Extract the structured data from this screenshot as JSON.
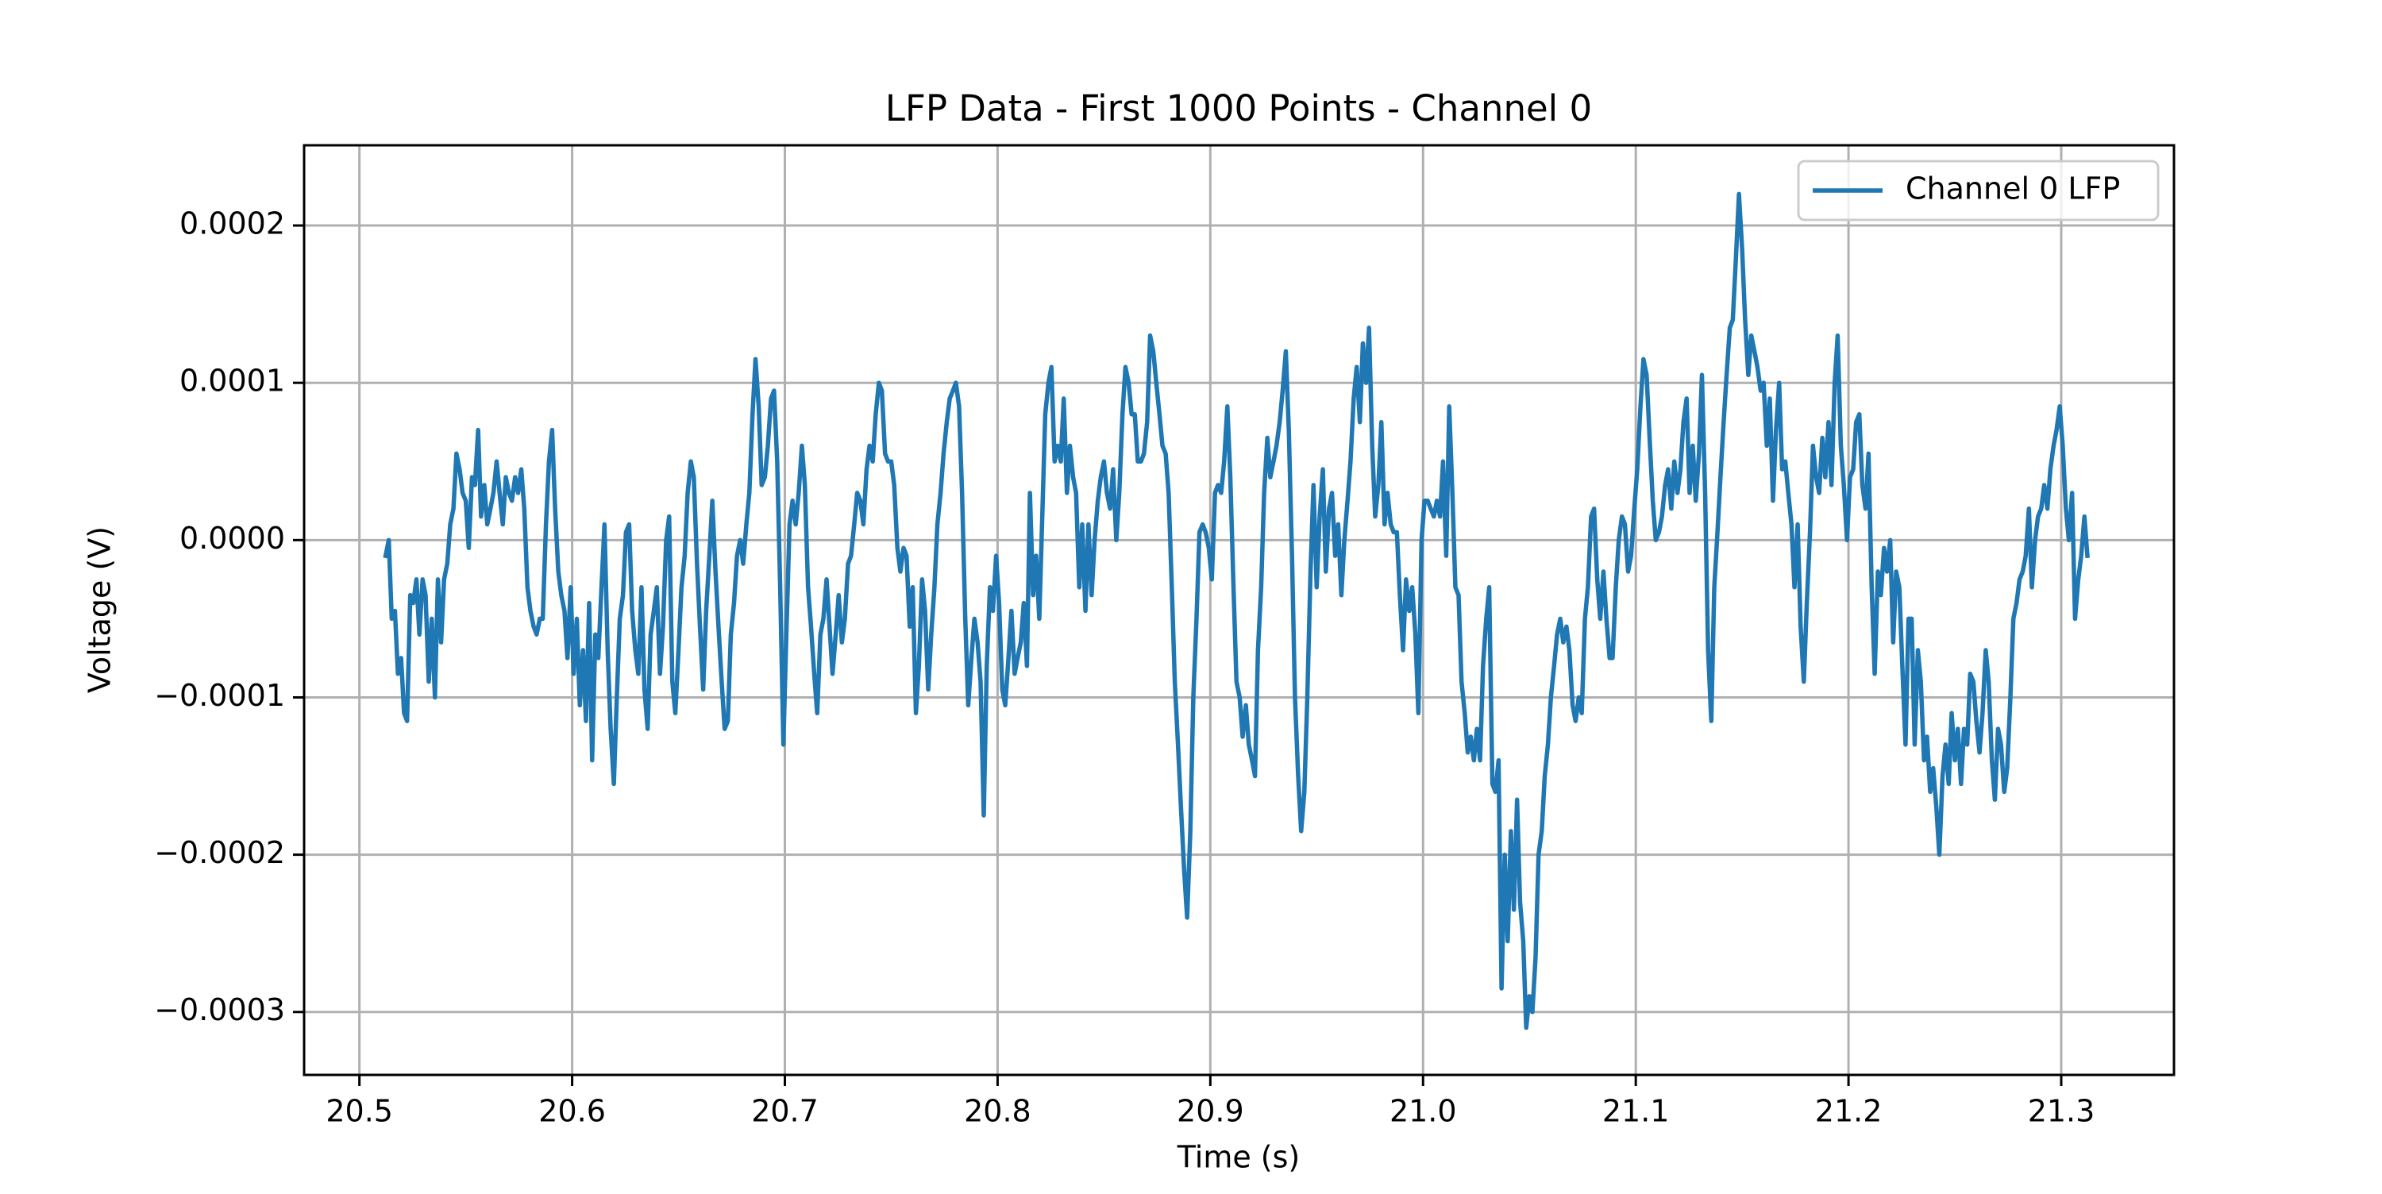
{
  "chart_data": {
    "type": "line",
    "title": "LFP Data - First 1000 Points - Channel 0",
    "x_label": "Time (s)",
    "y_label": "Voltage (V)",
    "grid": true,
    "legend": "upper right",
    "xlim": [
      20.474,
      21.353
    ],
    "ylim": [
      -0.00034,
      0.000251
    ],
    "xticks": [
      20.5,
      20.6,
      20.7,
      20.8,
      20.9,
      {
        "value": 21,
        "label": "21.0"
      },
      21.1,
      21.2,
      21.3
    ],
    "yticks": [
      {
        "value": -0.0003,
        "label": "−0.0003"
      },
      {
        "value": -0.0002,
        "label": "−0.0002"
      },
      {
        "value": -0.0001,
        "label": "−0.0001"
      },
      {
        "value": 0,
        "label": "0.0000"
      },
      0.0001,
      0.0002
    ],
    "x": [
      20.5123,
      20.5138,
      20.5152,
      20.5167,
      20.5181,
      20.5196,
      20.521,
      20.5224,
      20.5239,
      20.5253,
      20.5268,
      20.5282,
      20.5297,
      20.5311,
      20.5326,
      20.534,
      20.5355,
      20.5369,
      20.5384,
      20.5398,
      20.5413,
      20.5427,
      20.5442,
      20.5456,
      20.5471,
      20.5485,
      20.55,
      20.5514,
      20.5529,
      20.5543,
      20.5558,
      20.5572,
      20.5587,
      20.5601,
      20.5616,
      20.563,
      20.5645,
      20.5659,
      20.5674,
      20.5688,
      20.5703,
      20.5717,
      20.5732,
      20.5746,
      20.5761,
      20.5775,
      20.579,
      20.5804,
      20.5819,
      20.5833,
      20.5848,
      20.5862,
      20.5877,
      20.5891,
      20.5906,
      20.592,
      20.5935,
      20.5949,
      20.5964,
      20.5978,
      20.5993,
      20.6007,
      20.6022,
      20.6036,
      20.6051,
      20.6065,
      20.608,
      20.6094,
      20.6109,
      20.6123,
      20.6138,
      20.6152,
      20.6167,
      20.6181,
      20.6196,
      20.621,
      20.6224,
      20.6239,
      20.6253,
      20.6268,
      20.6282,
      20.6297,
      20.6311,
      20.6326,
      20.634,
      20.6355,
      20.6369,
      20.6384,
      20.6398,
      20.6413,
      20.6427,
      20.6442,
      20.6456,
      20.6471,
      20.6485,
      20.65,
      20.6514,
      20.6529,
      20.6543,
      20.6558,
      20.6572,
      20.6587,
      20.6601,
      20.6616,
      20.663,
      20.6645,
      20.6659,
      20.6674,
      20.6688,
      20.6703,
      20.6717,
      20.6732,
      20.6746,
      20.6761,
      20.6775,
      20.679,
      20.6804,
      20.6819,
      20.6833,
      20.6848,
      20.6862,
      20.6877,
      20.6891,
      20.6906,
      20.692,
      20.6935,
      20.6949,
      20.6964,
      20.6978,
      20.6993,
      20.7007,
      20.7022,
      20.7036,
      20.7051,
      20.7065,
      20.708,
      20.7094,
      20.7109,
      20.7123,
      20.7138,
      20.7152,
      20.7167,
      20.7181,
      20.7196,
      20.721,
      20.7224,
      20.7239,
      20.7253,
      20.7268,
      20.7282,
      20.7297,
      20.7311,
      20.7326,
      20.734,
      20.7355,
      20.7369,
      20.7384,
      20.7398,
      20.7413,
      20.7427,
      20.7442,
      20.7456,
      20.7471,
      20.7485,
      20.75,
      20.7514,
      20.7529,
      20.7543,
      20.7558,
      20.7572,
      20.7587,
      20.7601,
      20.7616,
      20.763,
      20.7645,
      20.7659,
      20.7674,
      20.7688,
      20.7703,
      20.7717,
      20.7732,
      20.7746,
      20.7761,
      20.7775,
      20.779,
      20.7804,
      20.7819,
      20.7833,
      20.7848,
      20.7862,
      20.7877,
      20.7891,
      20.7906,
      20.792,
      20.7935,
      20.7949,
      20.7964,
      20.7978,
      20.7993,
      20.8007,
      20.8022,
      20.8036,
      20.8051,
      20.8065,
      20.808,
      20.8094,
      20.8109,
      20.8123,
      20.8138,
      20.8152,
      20.8167,
      20.8181,
      20.8196,
      20.821,
      20.8224,
      20.8239,
      20.8253,
      20.8268,
      20.8282,
      20.8297,
      20.8311,
      20.8326,
      20.834,
      20.8355,
      20.8369,
      20.8384,
      20.8398,
      20.8413,
      20.8427,
      20.8442,
      20.8456,
      20.8471,
      20.8485,
      20.85,
      20.8514,
      20.8529,
      20.8543,
      20.8558,
      20.8572,
      20.8587,
      20.8601,
      20.8616,
      20.863,
      20.8645,
      20.8659,
      20.8674,
      20.8688,
      20.8703,
      20.8717,
      20.8732,
      20.8746,
      20.8761,
      20.8775,
      20.879,
      20.8804,
      20.8819,
      20.8833,
      20.8848,
      20.8862,
      20.8877,
      20.8891,
      20.8906,
      20.892,
      20.8935,
      20.8949,
      20.8964,
      20.8978,
      20.8993,
      20.9007,
      20.9022,
      20.9036,
      20.9051,
      20.9065,
      20.908,
      20.9094,
      20.9109,
      20.9123,
      20.9138,
      20.9152,
      20.9167,
      20.9181,
      20.9196,
      20.921,
      20.9224,
      20.9239,
      20.9253,
      20.9268,
      20.9282,
      20.9297,
      20.9311,
      20.9326,
      20.934,
      20.9355,
      20.9369,
      20.9384,
      20.9398,
      20.9413,
      20.9427,
      20.9442,
      20.9456,
      20.9471,
      20.9485,
      20.95,
      20.9514,
      20.9529,
      20.9543,
      20.9558,
      20.9572,
      20.9587,
      20.9601,
      20.9616,
      20.963,
      20.9645,
      20.9659,
      20.9674,
      20.9688,
      20.9703,
      20.9717,
      20.9732,
      20.9746,
      20.9761,
      20.9775,
      20.979,
      20.9804,
      20.9819,
      20.9833,
      20.9848,
      20.9862,
      20.9877,
      20.9891,
      20.9906,
      20.992,
      20.9935,
      20.9949,
      20.9964,
      20.9978,
      20.9993,
      21.0007,
      21.0022,
      21.0036,
      21.0051,
      21.0065,
      21.008,
      21.0094,
      21.0109,
      21.0123,
      21.0138,
      21.0152,
      21.0167,
      21.0181,
      21.0196,
      21.021,
      21.0224,
      21.0239,
      21.0253,
      21.0268,
      21.0282,
      21.0297,
      21.0311,
      21.0326,
      21.034,
      21.0355,
      21.0369,
      21.0384,
      21.0398,
      21.0413,
      21.0427,
      21.0442,
      21.0456,
      21.0471,
      21.0485,
      21.05,
      21.0514,
      21.0529,
      21.0543,
      21.0558,
      21.0572,
      21.0587,
      21.0601,
      21.0616,
      21.063,
      21.0645,
      21.0659,
      21.0674,
      21.0688,
      21.0703,
      21.0717,
      21.0732,
      21.0746,
      21.0761,
      21.0775,
      21.079,
      21.0804,
      21.0819,
      21.0833,
      21.0848,
      21.0862,
      21.0877,
      21.0891,
      21.0906,
      21.092,
      21.0935,
      21.0949,
      21.0964,
      21.0978,
      21.0993,
      21.1007,
      21.1022,
      21.1036,
      21.1051,
      21.1065,
      21.108,
      21.1094,
      21.1109,
      21.1123,
      21.1138,
      21.1152,
      21.1167,
      21.1181,
      21.1196,
      21.121,
      21.1224,
      21.1239,
      21.1253,
      21.1268,
      21.1282,
      21.1297,
      21.1311,
      21.1326,
      21.134,
      21.1355,
      21.1369,
      21.1384,
      21.1398,
      21.1413,
      21.1427,
      21.1442,
      21.1456,
      21.1471,
      21.1485,
      21.15,
      21.1514,
      21.1529,
      21.1543,
      21.1558,
      21.1572,
      21.1587,
      21.1601,
      21.1616,
      21.163,
      21.1645,
      21.1659,
      21.1674,
      21.1688,
      21.1703,
      21.1717,
      21.1732,
      21.1746,
      21.1761,
      21.1775,
      21.179,
      21.1804,
      21.1819,
      21.1833,
      21.1848,
      21.1862,
      21.1877,
      21.1891,
      21.1906,
      21.192,
      21.1935,
      21.1949,
      21.1964,
      21.1978,
      21.1993,
      21.2007,
      21.2022,
      21.2036,
      21.2051,
      21.2065,
      21.208,
      21.2094,
      21.2109,
      21.2123,
      21.2138,
      21.2152,
      21.2167,
      21.2181,
      21.2196,
      21.221,
      21.2224,
      21.2239,
      21.2253,
      21.2268,
      21.2282,
      21.2297,
      21.2311,
      21.2326,
      21.234,
      21.2355,
      21.2369,
      21.2384,
      21.2398,
      21.2413,
      21.2427,
      21.2442,
      21.2456,
      21.2471,
      21.2485,
      21.25,
      21.2514,
      21.2529,
      21.2543,
      21.2558,
      21.2572,
      21.2587,
      21.2601,
      21.2616,
      21.263,
      21.2645,
      21.2659,
      21.2674,
      21.2688,
      21.2703,
      21.2717,
      21.2732,
      21.2746,
      21.2761,
      21.2775,
      21.279,
      21.2804,
      21.2819,
      21.2833,
      21.2848,
      21.2862,
      21.2877,
      21.2891,
      21.2906,
      21.292,
      21.2935,
      21.2949,
      21.2964,
      21.2978,
      21.2993,
      21.3007,
      21.3022,
      21.3036,
      21.3051,
      21.3065,
      21.308,
      21.3094,
      21.3109,
      21.3123
    ],
    "series": [
      {
        "name": "Channel 0 LFP",
        "color": "#1f77b4",
        "values": [
          -1e-05,
          0,
          -5e-05,
          -4.5e-05,
          -8.5e-05,
          -7.5e-05,
          -0.00011,
          -0.000115,
          -3.5e-05,
          -4e-05,
          -2.5e-05,
          -6e-05,
          -2.5e-05,
          -3.5e-05,
          -9e-05,
          -5e-05,
          -0.0001,
          -2.5e-05,
          -6.5e-05,
          -2.5e-05,
          -1.5e-05,
          1e-05,
          2e-05,
          5.5e-05,
          4.5e-05,
          3e-05,
          2.5e-05,
          -5e-06,
          4e-05,
          3.5e-05,
          7e-05,
          1.5e-05,
          3.5e-05,
          1e-05,
          2e-05,
          3e-05,
          5e-05,
          3e-05,
          1e-05,
          4e-05,
          3e-05,
          2.5e-05,
          4e-05,
          3e-05,
          4.5e-05,
          2e-05,
          -3e-05,
          -4.5e-05,
          -5.5e-05,
          -6e-05,
          -5e-05,
          -5e-05,
          1e-05,
          5e-05,
          7e-05,
          2e-05,
          -2e-05,
          -3.5e-05,
          -4.5e-05,
          -7.5e-05,
          -3e-05,
          -8.5e-05,
          -5e-05,
          -0.000105,
          -7e-05,
          -0.000115,
          -4e-05,
          -0.00014,
          -6e-05,
          -7.5e-05,
          -3e-05,
          1e-05,
          -7e-05,
          -0.00012,
          -0.000155,
          -0.0001,
          -5e-05,
          -3.5e-05,
          5e-06,
          1e-05,
          -4.5e-05,
          -7e-05,
          -8.5e-05,
          -3e-05,
          -9.5e-05,
          -0.00012,
          -6e-05,
          -4.5e-05,
          -3e-05,
          -8.5e-05,
          -5.5e-05,
          0,
          1.5e-05,
          -9e-05,
          -0.00011,
          -7e-05,
          -3e-05,
          -1e-05,
          3e-05,
          5e-05,
          4e-05,
          -1.5e-05,
          -5.5e-05,
          -9.5e-05,
          -4.5e-05,
          -1e-05,
          2.5e-05,
          -2e-05,
          -5.5e-05,
          -9e-05,
          -0.00012,
          -0.000115,
          -6e-05,
          -4e-05,
          -1e-05,
          0,
          -1.5e-05,
          1e-05,
          3e-05,
          8e-05,
          0.000115,
          8.5e-05,
          3.5e-05,
          4e-05,
          6e-05,
          9e-05,
          9.5e-05,
          5e-05,
          -3e-05,
          -0.00013,
          -6e-05,
          1e-05,
          2.5e-05,
          1e-05,
          3e-05,
          6e-05,
          3.5e-05,
          -3e-05,
          -5.5e-05,
          -8.5e-05,
          -0.00011,
          -6e-05,
          -5e-05,
          -2.5e-05,
          -5.5e-05,
          -8.5e-05,
          -6e-05,
          -3.5e-05,
          -6.5e-05,
          -5e-05,
          -1.5e-05,
          -1e-05,
          1e-05,
          3e-05,
          2.5e-05,
          1e-05,
          4.5e-05,
          6e-05,
          5e-05,
          8e-05,
          0.0001,
          9.5e-05,
          5.5e-05,
          5e-05,
          5e-05,
          3.5e-05,
          -5e-06,
          -2e-05,
          -5e-06,
          -1e-05,
          -5.5e-05,
          -3e-05,
          -0.00011,
          -8e-05,
          -2.5e-05,
          -4.5e-05,
          -9.5e-05,
          -6e-05,
          -3e-05,
          1e-05,
          3e-05,
          5.5e-05,
          7.5e-05,
          9e-05,
          9.5e-05,
          0.0001,
          8.5e-05,
          3e-05,
          -5e-05,
          -0.000105,
          -7.5e-05,
          -5e-05,
          -6.5e-05,
          -9e-05,
          -0.000175,
          -8e-05,
          -3e-05,
          -4.5e-05,
          -1e-05,
          -4e-05,
          -9.5e-05,
          -0.000105,
          -7.5e-05,
          -4.5e-05,
          -8.5e-05,
          -7.5e-05,
          -6.5e-05,
          -4e-05,
          -8e-05,
          3e-05,
          -3.5e-05,
          -1e-05,
          -5e-05,
          1.5e-05,
          8e-05,
          0.0001,
          0.00011,
          5e-05,
          6e-05,
          5e-05,
          9e-05,
          3e-05,
          6e-05,
          4e-05,
          3e-05,
          -3e-05,
          1e-05,
          -4.5e-05,
          1e-05,
          -3.5e-05,
          0,
          2.5e-05,
          4e-05,
          5e-05,
          3e-05,
          2e-05,
          4.5e-05,
          0,
          3e-05,
          8e-05,
          0.00011,
          0.0001,
          8e-05,
          8e-05,
          5e-05,
          5e-05,
          5.5e-05,
          7.5e-05,
          0.00013,
          0.00012,
          0.0001,
          8e-05,
          6e-05,
          5.5e-05,
          3e-05,
          -3e-05,
          -9e-05,
          -0.00013,
          -0.00017,
          -0.00021,
          -0.00024,
          -0.000185,
          -0.0001,
          -5e-05,
          5e-06,
          1e-05,
          5e-06,
          -5e-06,
          -2.5e-05,
          3e-05,
          3.5e-05,
          3e-05,
          5e-05,
          8.5e-05,
          4e-05,
          -3e-05,
          -9e-05,
          -0.0001,
          -0.000125,
          -0.000105,
          -0.00013,
          -0.00014,
          -0.00015,
          -7e-05,
          -3e-05,
          3e-05,
          6.5e-05,
          4e-05,
          5e-05,
          6e-05,
          7.5e-05,
          9.5e-05,
          0.00012,
          7e-05,
          -1e-05,
          -0.0001,
          -0.00015,
          -0.000185,
          -0.00016,
          -0.0001,
          -2e-05,
          3.5e-05,
          -3e-05,
          1.5e-05,
          4.5e-05,
          -2e-05,
          2e-05,
          3e-05,
          -1e-05,
          1e-05,
          -3.5e-05,
          0,
          2.5e-05,
          5e-05,
          9e-05,
          0.00011,
          7.5e-05,
          0.000125,
          0.0001,
          0.000135,
          6e-05,
          1.5e-05,
          3.5e-05,
          7.5e-05,
          1e-05,
          3e-05,
          1e-05,
          5e-06,
          5e-06,
          -3.5e-05,
          -7e-05,
          -2.5e-05,
          -4.5e-05,
          -3e-05,
          -6e-05,
          -0.00011,
          0,
          2.5e-05,
          2.5e-05,
          2e-05,
          1.5e-05,
          2.5e-05,
          1.5e-05,
          5e-05,
          -1e-05,
          8.5e-05,
          3e-05,
          -3e-05,
          -3.5e-05,
          -9e-05,
          -0.00011,
          -0.000135,
          -0.000125,
          -0.00014,
          -0.00012,
          -0.00014,
          -8e-05,
          -5e-05,
          -3e-05,
          -0.000155,
          -0.00016,
          -0.00014,
          -0.000285,
          -0.0002,
          -0.000255,
          -0.000185,
          -0.000235,
          -0.000165,
          -0.00023,
          -0.000255,
          -0.00031,
          -0.00029,
          -0.0003,
          -0.000265,
          -0.0002,
          -0.000185,
          -0.00015,
          -0.00013,
          -0.0001,
          -8e-05,
          -6e-05,
          -5e-05,
          -6.5e-05,
          -5.5e-05,
          -7e-05,
          -0.000105,
          -0.000115,
          -0.0001,
          -0.00011,
          -5e-05,
          -3e-05,
          1.5e-05,
          2e-05,
          -2.5e-05,
          -5e-05,
          -2e-05,
          -5e-05,
          -7.5e-05,
          -7.5e-05,
          -3e-05,
          0,
          1.5e-05,
          1e-05,
          -2e-05,
          -1e-05,
          2e-05,
          4.5e-05,
          8.5e-05,
          0.000115,
          0.000105,
          6.5e-05,
          2.5e-05,
          0,
          5e-06,
          1.5e-05,
          3.5e-05,
          4.5e-05,
          2e-05,
          5e-05,
          3e-05,
          4.5e-05,
          7.5e-05,
          9e-05,
          3e-05,
          6e-05,
          2.5e-05,
          5.5e-05,
          0.000105,
          3e-05,
          -7e-05,
          -0.000115,
          -3e-05,
          5e-06,
          4e-05,
          7.5e-05,
          0.000105,
          0.000135,
          0.00014,
          0.00018,
          0.00022,
          0.000185,
          0.00014,
          0.000105,
          0.00013,
          0.00012,
          0.00011,
          9.5e-05,
          0.0001,
          6e-05,
          9e-05,
          2.5e-05,
          7e-05,
          0.0001,
          4.5e-05,
          5e-05,
          3e-05,
          1e-05,
          -3e-05,
          1e-05,
          -5.5e-05,
          -9e-05,
          -4e-05,
          5e-06,
          6e-05,
          4e-05,
          3e-05,
          6.5e-05,
          4e-05,
          7.5e-05,
          3.5e-05,
          0.0001,
          0.00013,
          6e-05,
          3.5e-05,
          0,
          4e-05,
          4.5e-05,
          7.5e-05,
          8e-05,
          3.5e-05,
          2e-05,
          5.5e-05,
          -3e-05,
          -8.5e-05,
          -2e-05,
          -3.5e-05,
          -5e-06,
          -2e-05,
          0,
          -6.5e-05,
          -2e-05,
          -3e-05,
          -8e-05,
          -0.00013,
          -5e-05,
          -5e-05,
          -0.00013,
          -7e-05,
          -9e-05,
          -0.00014,
          -0.000125,
          -0.00016,
          -0.000145,
          -0.00017,
          -0.0002,
          -0.00015,
          -0.00013,
          -0.000155,
          -0.00011,
          -0.00014,
          -0.00012,
          -0.000155,
          -0.00012,
          -0.00013,
          -8.5e-05,
          -9e-05,
          -0.000115,
          -0.000135,
          -0.00011,
          -7e-05,
          -9e-05,
          -0.00014,
          -0.000165,
          -0.00012,
          -0.00013,
          -0.00016,
          -0.000145,
          -0.0001,
          -5e-05,
          -4e-05,
          -2.5e-05,
          -2e-05,
          -1e-05,
          2e-05,
          -3e-05,
          0,
          1.5e-05,
          2e-05,
          3.5e-05,
          2e-05,
          4.5e-05,
          6e-05,
          7e-05,
          8.5e-05,
          6e-05,
          2e-05,
          0,
          3e-05,
          -5e-05,
          -2.5e-05,
          -1e-05,
          1.5e-05,
          -1e-05
        ]
      }
    ]
  }
}
